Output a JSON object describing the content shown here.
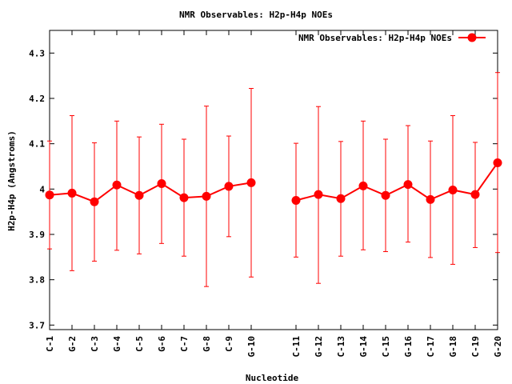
{
  "chart_data": {
    "type": "line",
    "title": "NMR Observables: H2p-H4p NOEs",
    "xlabel": "Nucleotide",
    "ylabel": "H2p-H4p (Angstroms)",
    "ylim": [
      3.69,
      4.35
    ],
    "yticks": [
      "4.3",
      "4.2",
      "4.1",
      "4",
      "3.9",
      "3.8",
      "3.7"
    ],
    "ytick_values": [
      4.3,
      4.2,
      4.1,
      4.0,
      3.9,
      3.8,
      3.7
    ],
    "grid": false,
    "legend": "top-right",
    "series_color": "#ff0000",
    "axis_color": "#000000",
    "series": [
      {
        "name": "NMR Observables: H2p-H4p NOEs",
        "segments": [
          [
            {
              "label": "C-1",
              "y": 3.987,
              "lo": 3.868,
              "hi": 4.106
            },
            {
              "label": "G-2",
              "y": 3.991,
              "lo": 3.82,
              "hi": 4.162
            },
            {
              "label": "C-3",
              "y": 3.972,
              "lo": 3.841,
              "hi": 4.102
            },
            {
              "label": "G-4",
              "y": 4.009,
              "lo": 3.865,
              "hi": 4.15
            },
            {
              "label": "C-5",
              "y": 3.986,
              "lo": 3.857,
              "hi": 4.115
            },
            {
              "label": "G-6",
              "y": 4.012,
              "lo": 3.88,
              "hi": 4.143
            },
            {
              "label": "C-7",
              "y": 3.981,
              "lo": 3.852,
              "hi": 4.11
            },
            {
              "label": "G-8",
              "y": 3.984,
              "lo": 3.785,
              "hi": 4.183
            },
            {
              "label": "C-9",
              "y": 4.006,
              "lo": 3.895,
              "hi": 4.117
            },
            {
              "label": "G-10",
              "y": 4.014,
              "lo": 3.806,
              "hi": 4.222
            }
          ],
          [
            {
              "label": "C-11",
              "y": 3.975,
              "lo": 3.85,
              "hi": 4.101
            },
            {
              "label": "G-12",
              "y": 3.988,
              "lo": 3.792,
              "hi": 4.182
            },
            {
              "label": "C-13",
              "y": 3.979,
              "lo": 3.852,
              "hi": 4.105
            },
            {
              "label": "G-14",
              "y": 4.007,
              "lo": 3.866,
              "hi": 4.15
            },
            {
              "label": "C-15",
              "y": 3.986,
              "lo": 3.862,
              "hi": 4.11
            },
            {
              "label": "G-16",
              "y": 4.01,
              "lo": 3.883,
              "hi": 4.14
            },
            {
              "label": "C-17",
              "y": 3.977,
              "lo": 3.849,
              "hi": 4.106
            },
            {
              "label": "G-18",
              "y": 3.998,
              "lo": 3.834,
              "hi": 4.162
            },
            {
              "label": "C-19",
              "y": 3.988,
              "lo": 3.871,
              "hi": 4.103
            },
            {
              "label": "G-20",
              "y": 4.058,
              "lo": 3.86,
              "hi": 4.257
            }
          ]
        ]
      }
    ]
  }
}
